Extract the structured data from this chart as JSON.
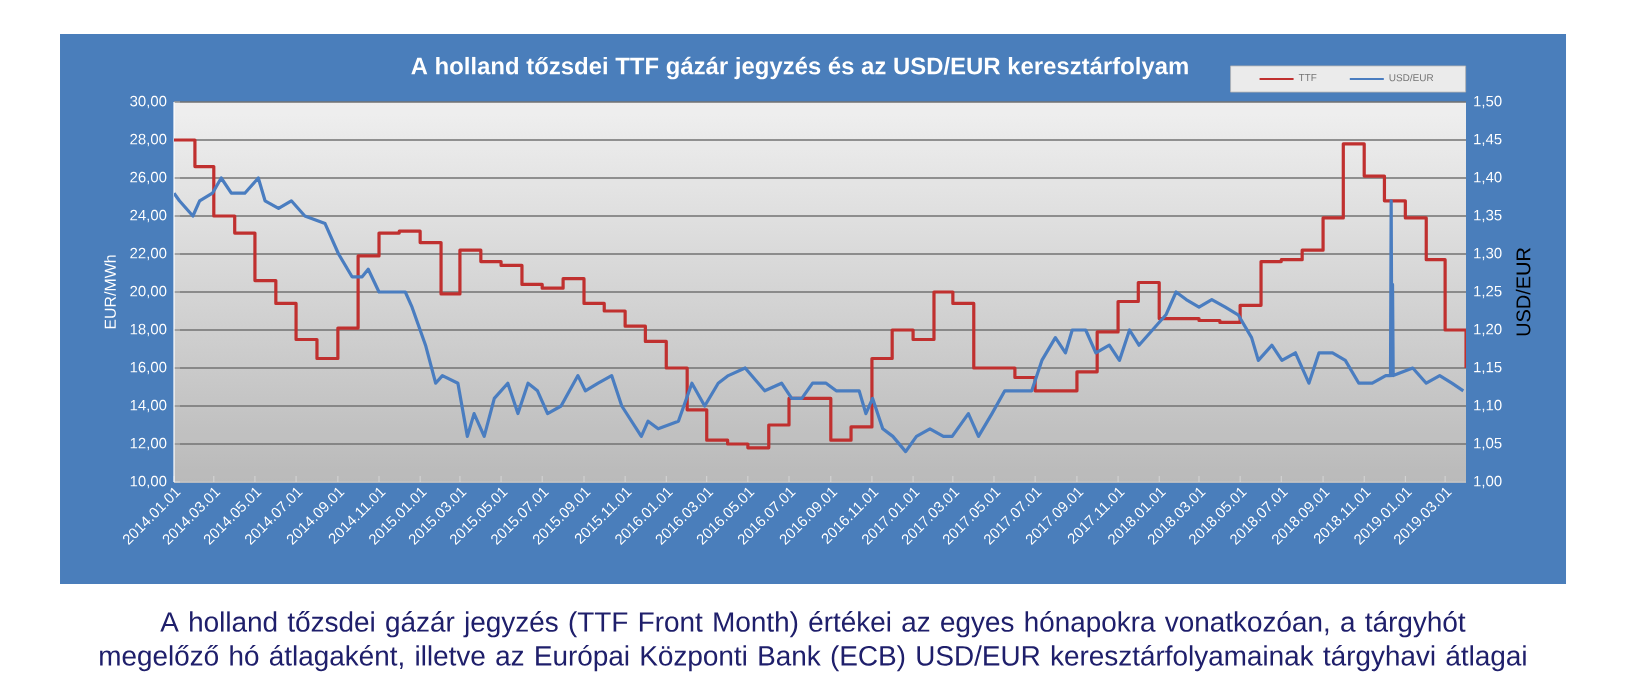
{
  "chart_data": {
    "type": "line",
    "title": "A holland tőzsdei TTF gázár jegyzés és az USD/EUR keresztárfolyam",
    "ylabel": "EUR/MWh",
    "y2label": "USD/EUR",
    "annotations": [
      "A holland tőzsdei gázár jegyzés (TTF Front Month) értékei az egyes hónapokra vonatkozóan, a tárgyhót megelőző hó átlagaként, illetve az Európai Központi Bank (ECB) USD/EUR keresztárfolyamainak tárgyhavi átlagai"
    ],
    "xlim": [
      "2014-01-01",
      "2019-04-01"
    ],
    "xticks": [
      {
        "value": "2014-01-01",
        "label": "2014.01.01"
      },
      {
        "value": "2014-03-01",
        "label": "2014.03.01"
      },
      {
        "value": "2014-05-01",
        "label": "2014.05.01"
      },
      {
        "value": "2014-07-01",
        "label": "2014.07.01"
      },
      {
        "value": "2014-09-01",
        "label": "2014.09.01"
      },
      {
        "value": "2014-11-01",
        "label": "2014.11.01"
      },
      {
        "value": "2015-01-01",
        "label": "2015.01.01"
      },
      {
        "value": "2015-03-01",
        "label": "2015.03.01"
      },
      {
        "value": "2015-05-01",
        "label": "2015.05.01"
      },
      {
        "value": "2015-07-01",
        "label": "2015.07.01"
      },
      {
        "value": "2015-09-01",
        "label": "2015.09.01"
      },
      {
        "value": "2015-11-01",
        "label": "2015.11.01"
      },
      {
        "value": "2016-01-01",
        "label": "2016.01.01"
      },
      {
        "value": "2016-03-01",
        "label": "2016.03.01"
      },
      {
        "value": "2016-05-01",
        "label": "2016.05.01"
      },
      {
        "value": "2016-07-01",
        "label": "2016.07.01"
      },
      {
        "value": "2016-09-01",
        "label": "2016.09.01"
      },
      {
        "value": "2016-11-01",
        "label": "2016.11.01"
      },
      {
        "value": "2017-01-01",
        "label": "2017.01.01"
      },
      {
        "value": "2017-03-01",
        "label": "2017.03.01"
      },
      {
        "value": "2017-05-01",
        "label": "2017.05.01"
      },
      {
        "value": "2017-07-01",
        "label": "2017.07.01"
      },
      {
        "value": "2017-09-01",
        "label": "2017.09.01"
      },
      {
        "value": "2017-11-01",
        "label": "2017.11.01"
      },
      {
        "value": "2018-01-01",
        "label": "2018.01.01"
      },
      {
        "value": "2018-03-01",
        "label": "2018.03.01"
      },
      {
        "value": "2018-05-01",
        "label": "2018.05.01"
      },
      {
        "value": "2018-07-01",
        "label": "2018.07.01"
      },
      {
        "value": "2018-09-01",
        "label": "2018.09.01"
      },
      {
        "value": "2018-11-01",
        "label": "2018.11.01"
      },
      {
        "value": "2019-01-01",
        "label": "2019.01.01"
      },
      {
        "value": "2019-03-01",
        "label": "2019.03.01"
      }
    ],
    "ylim": [
      10,
      30
    ],
    "yticks": [
      {
        "value": 10,
        "label": "10,00"
      },
      {
        "value": 12,
        "label": "12,00"
      },
      {
        "value": 14,
        "label": "14,00"
      },
      {
        "value": 16,
        "label": "16,00"
      },
      {
        "value": 18,
        "label": "18,00"
      },
      {
        "value": 20,
        "label": "20,00"
      },
      {
        "value": 22,
        "label": "22,00"
      },
      {
        "value": 24,
        "label": "24,00"
      },
      {
        "value": 26,
        "label": "26,00"
      },
      {
        "value": 28,
        "label": "28,00"
      },
      {
        "value": 30,
        "label": "30,00"
      }
    ],
    "y2lim": [
      1.0,
      1.5
    ],
    "y2ticks": [
      {
        "value": 1.0,
        "label": "1,00"
      },
      {
        "value": 1.05,
        "label": "1,05"
      },
      {
        "value": 1.1,
        "label": "1,10"
      },
      {
        "value": 1.15,
        "label": "1,15"
      },
      {
        "value": 1.2,
        "label": "1,20"
      },
      {
        "value": 1.25,
        "label": "1,25"
      },
      {
        "value": 1.3,
        "label": "1,30"
      },
      {
        "value": 1.35,
        "label": "1,35"
      },
      {
        "value": 1.4,
        "label": "1,40"
      },
      {
        "value": 1.45,
        "label": "1,45"
      },
      {
        "value": 1.5,
        "label": "1,50"
      }
    ],
    "grid": "y",
    "legend": "top right",
    "line_style": "solid",
    "series": [
      {
        "name": "TTF",
        "type": "step",
        "color": "#c0302f",
        "x": [
          "2014-01",
          "2014-02",
          "2014-03",
          "2014-04",
          "2014-05",
          "2014-06",
          "2014-07",
          "2014-08",
          "2014-09",
          "2014-10",
          "2014-11",
          "2014-12",
          "2015-01",
          "2015-02",
          "2015-03",
          "2015-04",
          "2015-05",
          "2015-06",
          "2015-07",
          "2015-08",
          "2015-09",
          "2015-10",
          "2015-11",
          "2015-12",
          "2016-01",
          "2016-02",
          "2016-03",
          "2016-04",
          "2016-05",
          "2016-06",
          "2016-07",
          "2016-08",
          "2016-09",
          "2016-10",
          "2016-11",
          "2016-12",
          "2017-01",
          "2017-02",
          "2017-03",
          "2017-04",
          "2017-05",
          "2017-06",
          "2017-07",
          "2017-08",
          "2017-09",
          "2017-10",
          "2017-11",
          "2017-12",
          "2018-01",
          "2018-02",
          "2018-03",
          "2018-04",
          "2018-05",
          "2018-06",
          "2018-07",
          "2018-08",
          "2018-09",
          "2018-10",
          "2018-11",
          "2018-12",
          "2019-01",
          "2019-02",
          "2019-03",
          "2019-04"
        ],
        "values": [
          28.0,
          26.6,
          24.0,
          23.1,
          20.6,
          19.4,
          17.5,
          16.5,
          18.1,
          21.9,
          23.1,
          23.2,
          22.6,
          19.9,
          22.2,
          21.6,
          21.4,
          20.4,
          20.2,
          20.7,
          19.4,
          19.0,
          18.2,
          17.4,
          16.0,
          13.8,
          12.2,
          12.0,
          11.8,
          13.0,
          14.4,
          14.4,
          12.2,
          12.9,
          16.5,
          18.0,
          17.5,
          20.0,
          19.4,
          16.0,
          16.0,
          15.5,
          14.8,
          14.8,
          15.8,
          17.9,
          19.5,
          20.5,
          18.6,
          18.6,
          18.5,
          18.4,
          19.3,
          21.6,
          21.7,
          22.2,
          23.9,
          27.8,
          26.1,
          24.8,
          23.9,
          21.7,
          18.0,
          16.0
        ]
      },
      {
        "name": "USD/EUR",
        "type": "line",
        "axis": "y2",
        "color": "#4a7dc0",
        "x": [
          "2014-01-01",
          "2014-01-09",
          "2014-01-29",
          "2014-02-08",
          "2014-02-27",
          "2014-03-12",
          "2014-03-27",
          "2014-04-16",
          "2014-05-06",
          "2014-05-16",
          "2014-06-05",
          "2014-06-24",
          "2014-07-14",
          "2014-08-13",
          "2014-09-02",
          "2014-09-22",
          "2014-10-07",
          "2014-10-16",
          "2014-11-01",
          "2014-11-20",
          "2014-12-10",
          "2014-12-20",
          "2015-01-09",
          "2015-01-24",
          "2015-02-03",
          "2015-02-26",
          "2015-03-12",
          "2015-03-22",
          "2015-04-06",
          "2015-04-21",
          "2015-05-11",
          "2015-05-26",
          "2015-06-10",
          "2015-06-24",
          "2015-07-09",
          "2015-07-29",
          "2015-08-23",
          "2015-09-03",
          "2015-09-22",
          "2015-10-12",
          "2015-10-27",
          "2015-11-25",
          "2015-12-05",
          "2015-12-20",
          "2016-01-19",
          "2016-02-08",
          "2016-02-27",
          "2016-03-18",
          "2016-04-02",
          "2016-04-27",
          "2016-05-26",
          "2016-06-20",
          "2016-07-05",
          "2016-07-20",
          "2016-08-05",
          "2016-08-25",
          "2016-09-09",
          "2016-09-24",
          "2016-10-13",
          "2016-10-23",
          "2016-11-02",
          "2016-11-17",
          "2016-12-02",
          "2016-12-21",
          "2017-01-06",
          "2017-01-26",
          "2017-02-15",
          "2017-02-28",
          "2017-03-24",
          "2017-04-08",
          "2017-04-28",
          "2017-05-17",
          "2017-06-07",
          "2017-06-26",
          "2017-07-11",
          "2017-07-31",
          "2017-08-15",
          "2017-08-25",
          "2017-09-14",
          "2017-09-29",
          "2017-10-19",
          "2017-11-03",
          "2017-11-18",
          "2017-12-02",
          "2017-12-22",
          "2018-01-11",
          "2018-01-26",
          "2018-02-10",
          "2018-03-01",
          "2018-03-20",
          "2018-04-09",
          "2018-04-28",
          "2018-05-18",
          "2018-05-28",
          "2018-06-17",
          "2018-07-02",
          "2018-07-22",
          "2018-08-11",
          "2018-08-26",
          "2018-09-15",
          "2018-10-04",
          "2018-10-24",
          "2018-11-13",
          "2018-12-03",
          "2018-12-10",
          "2018-12-11",
          "2018-12-12",
          "2018-12-13",
          "2018-12-14",
          "2019-01-12",
          "2019-02-01",
          "2019-02-21",
          "2019-03-11",
          "2019-03-28"
        ],
        "values": [
          1.38,
          1.37,
          1.35,
          1.37,
          1.38,
          1.4,
          1.38,
          1.38,
          1.4,
          1.37,
          1.36,
          1.37,
          1.35,
          1.34,
          1.3,
          1.27,
          1.27,
          1.28,
          1.25,
          1.25,
          1.25,
          1.23,
          1.18,
          1.13,
          1.14,
          1.13,
          1.06,
          1.09,
          1.06,
          1.11,
          1.13,
          1.09,
          1.13,
          1.12,
          1.09,
          1.1,
          1.14,
          1.12,
          1.13,
          1.14,
          1.1,
          1.06,
          1.08,
          1.07,
          1.08,
          1.13,
          1.1,
          1.13,
          1.14,
          1.15,
          1.12,
          1.13,
          1.11,
          1.11,
          1.13,
          1.13,
          1.12,
          1.12,
          1.12,
          1.09,
          1.11,
          1.07,
          1.06,
          1.04,
          1.06,
          1.07,
          1.06,
          1.06,
          1.09,
          1.06,
          1.09,
          1.12,
          1.12,
          1.12,
          1.16,
          1.19,
          1.17,
          1.2,
          1.2,
          1.17,
          1.18,
          1.16,
          1.2,
          1.18,
          1.2,
          1.22,
          1.25,
          1.24,
          1.23,
          1.24,
          1.23,
          1.22,
          1.19,
          1.16,
          1.18,
          1.16,
          1.17,
          1.13,
          1.17,
          1.17,
          1.16,
          1.13,
          1.13,
          1.14,
          1.14,
          1.37,
          1.14,
          1.26,
          1.14,
          1.15,
          1.13,
          1.14,
          1.13,
          1.12
        ]
      }
    ]
  }
}
